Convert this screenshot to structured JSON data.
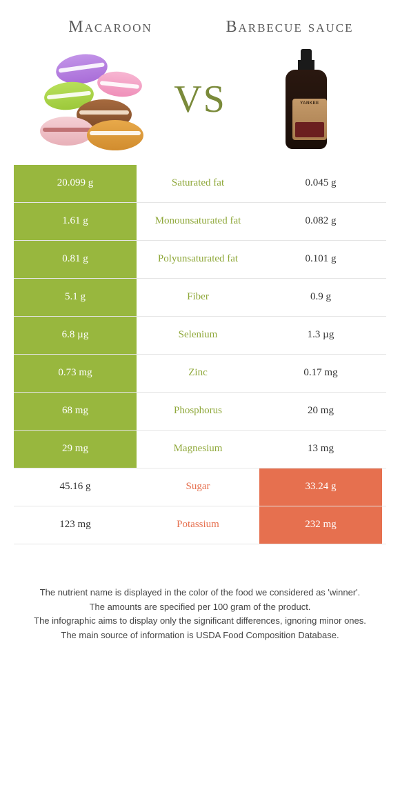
{
  "header": {
    "left_title": "Macaroon",
    "right_title": "Barbecue sauce",
    "vs": "VS"
  },
  "colors": {
    "green_bg": "#98b73e",
    "orange_bg": "#e6704f",
    "green_text": "#8fa83a",
    "orange_text": "#e6704f",
    "row_border": "#e5e5e5",
    "background": "#ffffff"
  },
  "table": {
    "type": "comparison-table",
    "rows": [
      {
        "left": "20.099 g",
        "label": "Saturated fat",
        "right": "0.045 g",
        "winner": "left"
      },
      {
        "left": "1.61 g",
        "label": "Monounsaturated fat",
        "right": "0.082 g",
        "winner": "left"
      },
      {
        "left": "0.81 g",
        "label": "Polyunsaturated fat",
        "right": "0.101 g",
        "winner": "left"
      },
      {
        "left": "5.1 g",
        "label": "Fiber",
        "right": "0.9 g",
        "winner": "left"
      },
      {
        "left": "6.8 µg",
        "label": "Selenium",
        "right": "1.3 µg",
        "winner": "left"
      },
      {
        "left": "0.73 mg",
        "label": "Zinc",
        "right": "0.17 mg",
        "winner": "left"
      },
      {
        "left": "68 mg",
        "label": "Phosphorus",
        "right": "20 mg",
        "winner": "left"
      },
      {
        "left": "29 mg",
        "label": "Magnesium",
        "right": "13 mg",
        "winner": "left"
      },
      {
        "left": "45.16 g",
        "label": "Sugar",
        "right": "33.24 g",
        "winner": "right"
      },
      {
        "left": "123 mg",
        "label": "Potassium",
        "right": "232 mg",
        "winner": "right"
      }
    ]
  },
  "footer": {
    "line1": "The nutrient name is displayed in the color of the food we considered as 'winner'.",
    "line2": "The amounts are specified per 100 gram of the product.",
    "line3": "The infographic aims to display only the significant differences, ignoring minor ones.",
    "line4": "The main source of information is USDA Food Composition Database."
  }
}
